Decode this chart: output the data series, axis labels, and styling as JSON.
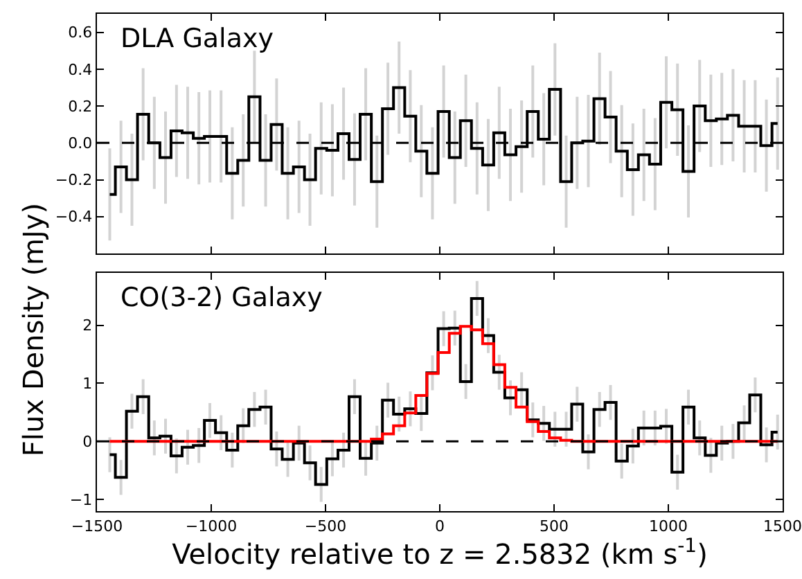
{
  "chart_data": [
    {
      "type": "step",
      "title": "DLA Galaxy",
      "ylabel": "Flux Density (mJy)",
      "x": [
        -1444,
        -1395,
        -1347,
        -1298,
        -1249,
        -1200,
        -1152,
        -1103,
        -1054,
        -1006,
        -957,
        -908,
        -860,
        -811,
        -762,
        -714,
        -665,
        -616,
        -568,
        -519,
        -470,
        -421,
        -373,
        -324,
        -275,
        -227,
        -178,
        -129,
        -81,
        -32,
        17,
        66,
        114,
        163,
        212,
        260,
        309,
        358,
        407,
        455,
        504,
        553,
        601,
        650,
        699,
        747,
        796,
        845,
        893,
        942,
        991,
        1040,
        1088,
        1137,
        1186,
        1234,
        1283,
        1332,
        1380,
        1429,
        1478
      ],
      "series": [
        {
          "color": "#000000",
          "values": [
            -0.28,
            -0.13,
            -0.2,
            0.155,
            0.0,
            -0.08,
            0.065,
            0.055,
            0.025,
            0.035,
            0.035,
            -0.165,
            -0.095,
            0.25,
            -0.095,
            0.1,
            -0.165,
            -0.13,
            -0.2,
            -0.03,
            -0.04,
            0.05,
            -0.09,
            0.155,
            -0.21,
            0.185,
            0.3,
            0.145,
            -0.045,
            -0.165,
            0.17,
            -0.08,
            0.12,
            -0.03,
            -0.12,
            0.055,
            -0.065,
            -0.02,
            0.17,
            0.02,
            0.29,
            -0.21,
            0.0,
            0.01,
            0.24,
            0.14,
            -0.045,
            -0.145,
            -0.065,
            -0.115,
            0.22,
            0.18,
            -0.155,
            0.2,
            0.12,
            0.13,
            0.15,
            0.09,
            0.09,
            -0.015,
            0.105
          ],
          "errors": [
            0.25,
            0.25,
            0.25,
            0.25,
            0.25,
            0.25,
            0.25,
            0.25,
            0.25,
            0.25,
            0.25,
            0.25,
            0.25,
            0.25,
            0.25,
            0.25,
            0.25,
            0.25,
            0.25,
            0.25,
            0.25,
            0.25,
            0.25,
            0.25,
            0.25,
            0.25,
            0.25,
            0.25,
            0.25,
            0.25,
            0.25,
            0.25,
            0.25,
            0.25,
            0.25,
            0.25,
            0.25,
            0.25,
            0.25,
            0.25,
            0.25,
            0.25,
            0.25,
            0.25,
            0.25,
            0.25,
            0.25,
            0.25,
            0.25,
            0.25,
            0.25,
            0.25,
            0.25,
            0.25,
            0.25,
            0.25,
            0.25,
            0.25,
            0.25,
            0.25,
            0.25
          ]
        }
      ],
      "xlim": [
        -1500,
        1500
      ],
      "xticks": [
        {
          "value": -1500,
          "label": null
        },
        {
          "value": -1000,
          "label": null
        },
        {
          "value": -500,
          "label": null
        },
        {
          "value": 0,
          "label": null
        },
        {
          "value": 500,
          "label": null
        },
        {
          "value": 1000,
          "label": null
        },
        {
          "value": 1500,
          "label": null
        }
      ],
      "ylim": [
        -0.6,
        0.7
      ],
      "yticks": [
        {
          "value": -0.4,
          "label": "−0.4"
        },
        {
          "value": -0.2,
          "label": "−0.2"
        },
        {
          "value": 0,
          "label": "0.0"
        },
        0.2,
        0.4,
        0.6
      ],
      "tick_labels": "y",
      "ref_lines": [
        {
          "axis": "y",
          "value": 0,
          "color": "#000000",
          "line_style": "dashed"
        }
      ]
    },
    {
      "type": "step",
      "title": "CO(3-2) Galaxy",
      "xlabel": "Velocity relative to z = 2.5832 (km s$^{-1}$)",
      "x": [
        -1444,
        -1395,
        -1347,
        -1298,
        -1249,
        -1200,
        -1152,
        -1103,
        -1054,
        -1006,
        -957,
        -908,
        -860,
        -811,
        -762,
        -714,
        -665,
        -616,
        -568,
        -519,
        -470,
        -421,
        -373,
        -324,
        -275,
        -227,
        -178,
        -129,
        -81,
        -32,
        17,
        66,
        114,
        163,
        212,
        260,
        309,
        358,
        407,
        455,
        504,
        553,
        601,
        650,
        699,
        747,
        796,
        845,
        893,
        942,
        991,
        1040,
        1088,
        1137,
        1186,
        1234,
        1283,
        1332,
        1380,
        1429,
        1478
      ],
      "series": [
        {
          "color": "#000000",
          "values": [
            -0.23,
            -0.62,
            0.52,
            0.77,
            0.06,
            0.09,
            -0.25,
            -0.1,
            -0.07,
            0.36,
            0.15,
            -0.15,
            0.27,
            0.55,
            0.59,
            -0.13,
            -0.31,
            -0.03,
            -0.37,
            -0.74,
            -0.3,
            -0.15,
            0.77,
            -0.29,
            -0.03,
            0.71,
            0.47,
            0.56,
            0.48,
            1.18,
            1.94,
            1.95,
            1.03,
            2.46,
            1.82,
            1.19,
            0.75,
            0.89,
            0.37,
            0.31,
            0.21,
            0.21,
            0.64,
            -0.18,
            0.55,
            0.67,
            -0.34,
            -0.08,
            0.23,
            0.23,
            0.26,
            -0.53,
            0.59,
            0.06,
            -0.24,
            -0.03,
            0.0,
            0.32,
            0.8,
            -0.06,
            0.16
          ],
          "errors": [
            0.3,
            0.3,
            0.3,
            0.3,
            0.3,
            0.3,
            0.3,
            0.3,
            0.3,
            0.3,
            0.3,
            0.3,
            0.3,
            0.3,
            0.3,
            0.3,
            0.3,
            0.3,
            0.3,
            0.3,
            0.3,
            0.3,
            0.3,
            0.3,
            0.3,
            0.3,
            0.3,
            0.3,
            0.3,
            0.3,
            0.3,
            0.3,
            0.3,
            0.3,
            0.3,
            0.3,
            0.3,
            0.3,
            0.3,
            0.3,
            0.3,
            0.3,
            0.3,
            0.3,
            0.3,
            0.3,
            0.3,
            0.3,
            0.3,
            0.3,
            0.3,
            0.3,
            0.3,
            0.3,
            0.3,
            0.3,
            0.3,
            0.3,
            0.3,
            0.3,
            0.3
          ]
        },
        {
          "color": "#ff0000",
          "values": [
            0,
            0,
            0,
            0,
            0,
            0,
            0,
            0,
            0,
            0,
            0,
            0,
            0,
            0,
            0,
            0,
            0,
            0,
            0,
            0,
            0,
            0,
            0,
            0,
            0.04,
            0.13,
            0.27,
            0.49,
            0.79,
            1.17,
            1.53,
            1.86,
            1.98,
            1.92,
            1.68,
            1.32,
            0.93,
            0.59,
            0.34,
            0.17,
            0.06,
            0.02,
            0,
            0,
            0,
            0,
            0,
            0,
            0,
            0,
            0,
            0,
            0,
            0,
            0,
            0,
            0,
            0,
            0,
            0,
            0
          ]
        }
      ],
      "xlim": [
        -1500,
        1500
      ],
      "xticks": [
        {
          "value": -1500,
          "label": "−1500"
        },
        {
          "value": -1000,
          "label": "−1000"
        },
        {
          "value": -500,
          "label": "−500"
        },
        0,
        500,
        1000,
        1500
      ],
      "ylim": [
        -1.2,
        2.9
      ],
      "yticks": [
        {
          "value": -1,
          "label": "−1"
        },
        0,
        1,
        2
      ],
      "ref_lines": [
        {
          "axis": "y",
          "value": 0,
          "color": "#000000",
          "line_style": "dashed"
        }
      ]
    }
  ]
}
